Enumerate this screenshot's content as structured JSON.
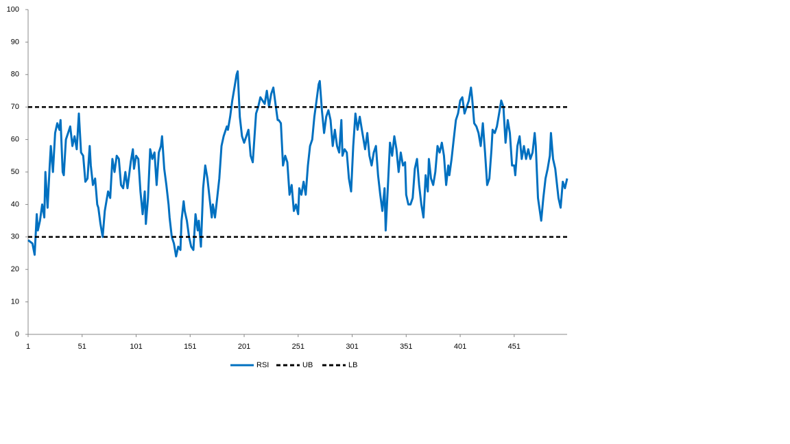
{
  "chart_data": {
    "type": "line",
    "xlim": [
      1,
      500
    ],
    "xticks": [
      1,
      51,
      101,
      151,
      201,
      251,
      301,
      351,
      401,
      451
    ],
    "ylim": [
      0,
      100
    ],
    "yticks": [
      0,
      10,
      20,
      30,
      40,
      50,
      60,
      70,
      80,
      90,
      100
    ],
    "legend": "bottom",
    "series": [
      {
        "name": "RSI",
        "color": "#0070c0",
        "dash": false,
        "x": [
          1,
          5,
          7,
          9,
          10,
          12,
          14,
          16,
          17,
          19,
          21,
          22,
          24,
          26,
          28,
          30,
          31,
          33,
          34,
          36,
          38,
          40,
          42,
          44,
          46,
          48,
          50,
          52,
          54,
          56,
          58,
          59,
          61,
          63,
          65,
          66,
          68,
          70,
          72,
          75,
          77,
          79,
          81,
          83,
          85,
          87,
          89,
          91,
          93,
          96,
          98,
          99,
          101,
          103,
          105,
          107,
          109,
          110,
          112,
          114,
          116,
          118,
          120,
          122,
          124,
          125,
          127,
          129,
          131,
          132,
          134,
          136,
          138,
          140,
          142,
          143,
          145,
          146,
          148,
          150,
          152,
          154,
          156,
          158,
          159,
          161,
          163,
          165,
          167,
          169,
          171,
          172,
          174,
          176,
          178,
          180,
          182,
          185,
          186,
          188,
          190,
          192,
          194,
          195,
          197,
          199,
          201,
          203,
          205,
          207,
          209,
          211,
          212,
          214,
          216,
          218,
          220,
          222,
          224,
          226,
          228,
          230,
          232,
          233,
          235,
          237,
          239,
          241,
          243,
          245,
          247,
          249,
          251,
          252,
          254,
          256,
          258,
          260,
          262,
          264,
          266,
          268,
          270,
          271,
          273,
          275,
          277,
          279,
          281,
          283,
          285,
          287,
          289,
          291,
          292,
          294,
          296,
          298,
          300,
          302,
          304,
          306,
          308,
          310,
          311,
          313,
          315,
          317,
          319,
          321,
          323,
          325,
          327,
          329,
          331,
          332,
          334,
          336,
          338,
          340,
          342,
          344,
          346,
          348,
          350,
          351,
          353,
          355,
          357,
          359,
          361,
          363,
          365,
          367,
          369,
          371,
          372,
          374,
          376,
          378,
          380,
          382,
          384,
          386,
          388,
          390,
          391,
          393,
          395,
          397,
          399,
          401,
          403,
          405,
          407,
          409,
          411,
          412,
          414,
          416,
          418,
          420,
          422,
          424,
          426,
          428,
          430,
          431,
          433,
          435,
          437,
          439,
          441,
          443,
          445,
          447,
          449,
          451,
          452,
          454,
          456,
          458,
          460,
          462,
          464,
          466,
          468,
          470,
          471,
          473,
          476,
          478,
          480,
          482,
          484,
          485,
          487,
          489,
          491,
          492,
          494,
          496,
          498,
          500
        ],
        "values": [
          29,
          28,
          24.5,
          37,
          32,
          35,
          40,
          36,
          50,
          39,
          52,
          58,
          50,
          62,
          65,
          63,
          66,
          50,
          49,
          60,
          62,
          64,
          58,
          61,
          57,
          68,
          56,
          55,
          47,
          48,
          58,
          52,
          46,
          48,
          40,
          39,
          34,
          30,
          38,
          44,
          42,
          54,
          50,
          55,
          54,
          46,
          45,
          50,
          45,
          53,
          57,
          51,
          55,
          54,
          44,
          37,
          44,
          34,
          42,
          57,
          54,
          56,
          46,
          56,
          58,
          61,
          51,
          46,
          40,
          36,
          30,
          28,
          24,
          27,
          26,
          35,
          41,
          38,
          35,
          30,
          27,
          26,
          37,
          32,
          35,
          27,
          45,
          52,
          48,
          42,
          36,
          40,
          36,
          42,
          48,
          58,
          61,
          64,
          63,
          67,
          72,
          76,
          80,
          81,
          67,
          61,
          59,
          61,
          63,
          55,
          53,
          63,
          68,
          70,
          73,
          72,
          71,
          75,
          70,
          74,
          76,
          71,
          66,
          66,
          65,
          52,
          55,
          53,
          43,
          46,
          38,
          40,
          37,
          45,
          43,
          47,
          43,
          52,
          58,
          60,
          67,
          72,
          77,
          78,
          69,
          62,
          67,
          69,
          66,
          58,
          63,
          58,
          56,
          66,
          55,
          57,
          56,
          48,
          44,
          58,
          68,
          63,
          67,
          63,
          61,
          57,
          62,
          55,
          52,
          56,
          58,
          49,
          43,
          38,
          45,
          32,
          45,
          59,
          55,
          61,
          57,
          50,
          56,
          52,
          53,
          43,
          40,
          40,
          42,
          51,
          54,
          46,
          40,
          36,
          49,
          44,
          54,
          48,
          46,
          50,
          58,
          56,
          59,
          55,
          46,
          52,
          49,
          54,
          60,
          66,
          68,
          72,
          73,
          68,
          70,
          72,
          76,
          73,
          65,
          64,
          62,
          58,
          65,
          56,
          46,
          48,
          57,
          63,
          62,
          64,
          68,
          72,
          70,
          59,
          66,
          62,
          52,
          52,
          49,
          58,
          61,
          54,
          58,
          54,
          57,
          54,
          56,
          62,
          58,
          42,
          35,
          42,
          48,
          51,
          55,
          62,
          54,
          51,
          45,
          42,
          39,
          47,
          45,
          48
        ]
      },
      {
        "name": "UB",
        "color": "#000000",
        "dash": true,
        "x": [
          1,
          500
        ],
        "values": [
          70,
          70
        ]
      },
      {
        "name": "LB",
        "color": "#000000",
        "dash": true,
        "x": [
          1,
          500
        ],
        "values": [
          30,
          30
        ]
      }
    ]
  }
}
